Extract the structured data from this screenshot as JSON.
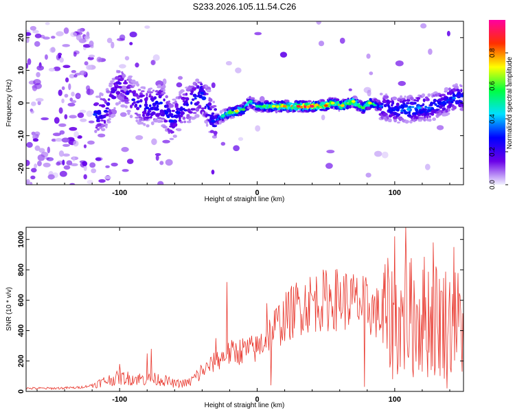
{
  "title": "S233.2026.105.11.54.C26",
  "chart_data": [
    {
      "type": "heatmap",
      "xlabel": "Height of straight line (km)",
      "ylabel": "Frequency (Hz)",
      "xlim": [
        -168,
        150
      ],
      "ylim": [
        -25,
        25
      ],
      "xticks": [
        -100,
        0,
        100
      ],
      "yticks": [
        -20,
        -10,
        0,
        10,
        20
      ],
      "ridge": [
        {
          "x": -118,
          "y": -3.5,
          "v": 0.32
        },
        {
          "x": -110,
          "y": -2.5,
          "v": 0.25
        },
        {
          "x": -100,
          "y": 6,
          "v": 0.2
        },
        {
          "x": -90,
          "y": 1,
          "v": 0.25
        },
        {
          "x": -80,
          "y": -1.5,
          "v": 0.28
        },
        {
          "x": -70,
          "y": 0,
          "v": 0.3
        },
        {
          "x": -62,
          "y": -5.5,
          "v": 0.3
        },
        {
          "x": -55,
          "y": -2,
          "v": 0.25
        },
        {
          "x": -40,
          "y": 3,
          "v": 0.3
        },
        {
          "x": -32,
          "y": -5.5,
          "v": 0.3
        },
        {
          "x": -25,
          "y": -4,
          "v": 0.5
        },
        {
          "x": -20,
          "y": -3,
          "v": 0.6
        },
        {
          "x": -15,
          "y": -2.5,
          "v": 0.75
        },
        {
          "x": -10,
          "y": -2,
          "v": 0.6
        },
        {
          "x": -5,
          "y": 0.5,
          "v": 0.5
        },
        {
          "x": 0,
          "y": -1,
          "v": 0.5
        },
        {
          "x": 5,
          "y": -1,
          "v": 0.6
        },
        {
          "x": 12,
          "y": -1,
          "v": 0.7
        },
        {
          "x": 20,
          "y": -1,
          "v": 0.8
        },
        {
          "x": 30,
          "y": -1,
          "v": 0.9
        },
        {
          "x": 40,
          "y": -1,
          "v": 0.95
        },
        {
          "x": 50,
          "y": -0.8,
          "v": 0.85
        },
        {
          "x": 55,
          "y": 0,
          "v": 0.7
        },
        {
          "x": 62,
          "y": -0.8,
          "v": 0.75
        },
        {
          "x": 70,
          "y": 0.5,
          "v": 0.7
        },
        {
          "x": 77,
          "y": -1.5,
          "v": 0.6
        },
        {
          "x": 82,
          "y": 0,
          "v": 0.7
        },
        {
          "x": 90,
          "y": -1,
          "v": 0.35
        },
        {
          "x": 100,
          "y": -2,
          "v": 0.3
        },
        {
          "x": 110,
          "y": -2,
          "v": 0.4
        },
        {
          "x": 118,
          "y": -1.5,
          "v": 0.4
        },
        {
          "x": 125,
          "y": -1.5,
          "v": 0.35
        },
        {
          "x": 135,
          "y": 0,
          "v": 0.3
        },
        {
          "x": 143,
          "y": 1.5,
          "v": 0.35
        }
      ]
    },
    {
      "type": "line",
      "xlabel": "Height of straight line (km)",
      "ylabel": "SNR (10 * v/v)",
      "xlim": [
        -168,
        150
      ],
      "ylim": [
        0,
        1080
      ],
      "xticks": [
        -100,
        0,
        100
      ],
      "yticks": [
        0,
        200,
        400,
        600,
        800,
        1000
      ],
      "series": [
        {
          "name": "SNR",
          "x": [
            -168,
            -150,
            -130,
            -120,
            -110,
            -100,
            -90,
            -80,
            -70,
            -60,
            -50,
            -40,
            -30,
            -20,
            -10,
            0,
            10,
            20,
            30,
            40,
            50,
            60,
            70,
            80,
            90,
            100,
            110,
            120,
            130,
            140,
            150
          ],
          "values": [
            20,
            20,
            25,
            40,
            70,
            90,
            85,
            80,
            80,
            50,
            55,
            130,
            200,
            250,
            270,
            280,
            400,
            480,
            560,
            590,
            600,
            610,
            590,
            560,
            500,
            450,
            480,
            500,
            480,
            450,
            450
          ],
          "spikes": [
            {
              "x": -100,
              "v": 180
            },
            {
              "x": -80,
              "v": 250
            },
            {
              "x": -77,
              "v": 280
            },
            {
              "x": -30,
              "v": 350
            },
            {
              "x": -22,
              "v": 720
            },
            {
              "x": 7,
              "v": 580
            },
            {
              "x": 10,
              "v": 40
            },
            {
              "x": 78,
              "v": 30
            },
            {
              "x": 100,
              "v": 1020
            },
            {
              "x": 108,
              "v": 1080
            },
            {
              "x": 128,
              "v": 980
            },
            {
              "x": 143,
              "v": 950
            },
            {
              "x": 138,
              "v": 20
            }
          ],
          "color": "#e8352b"
        }
      ]
    }
  ],
  "colorbar": {
    "label": "Normalized spectral amplitude",
    "ticks": [
      "0.0",
      "0.2",
      "0.4",
      "0.6",
      "0.8"
    ],
    "range": [
      0,
      1
    ],
    "colors": [
      "#f2f2ff",
      "#6a00e8",
      "#0000ff",
      "#00e0ff",
      "#00ff40",
      "#ffff00",
      "#ff3000",
      "#ff00a0"
    ]
  }
}
